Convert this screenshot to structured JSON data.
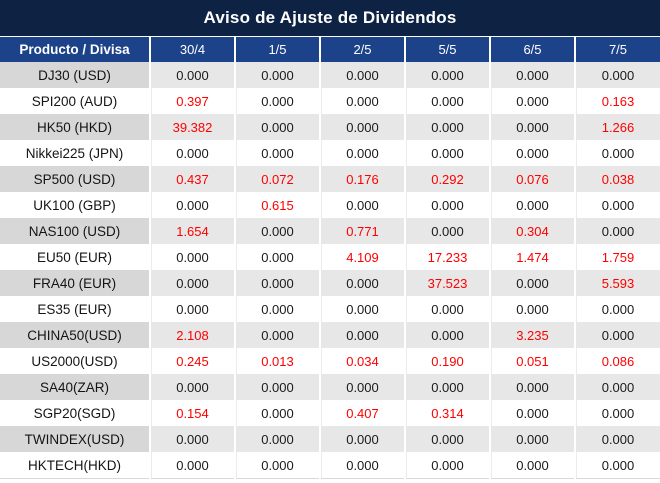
{
  "title": "Aviso de Ajuste de Dividendos",
  "colors": {
    "title_bg": "#0e2343",
    "header_bg": "#1c4289",
    "stripe_label_bg": "#d7d7d7",
    "stripe_cell_bg": "#e7e7e7",
    "negative_value_red": "#ff0000",
    "value_text": "#1a1a1a"
  },
  "table": {
    "corner_header": "Producto / Divisa",
    "date_headers": [
      "30/4",
      "1/5",
      "2/5",
      "5/5",
      "6/5",
      "7/5"
    ],
    "rows": [
      {
        "product": "DJ30 (USD)",
        "values": [
          "0.000",
          "0.000",
          "0.000",
          "0.000",
          "0.000",
          "0.000"
        ],
        "red_mask": [
          0,
          0,
          0,
          0,
          0,
          0
        ]
      },
      {
        "product": "SPI200 (AUD)",
        "values": [
          "0.397",
          "0.000",
          "0.000",
          "0.000",
          "0.000",
          "0.163"
        ],
        "red_mask": [
          1,
          0,
          0,
          0,
          0,
          1
        ]
      },
      {
        "product": "HK50 (HKD)",
        "values": [
          "39.382",
          "0.000",
          "0.000",
          "0.000",
          "0.000",
          "1.266"
        ],
        "red_mask": [
          1,
          0,
          0,
          0,
          0,
          1
        ]
      },
      {
        "product": "Nikkei225 (JPN)",
        "values": [
          "0.000",
          "0.000",
          "0.000",
          "0.000",
          "0.000",
          "0.000"
        ],
        "red_mask": [
          0,
          0,
          0,
          0,
          0,
          0
        ]
      },
      {
        "product": "SP500 (USD)",
        "values": [
          "0.437",
          "0.072",
          "0.176",
          "0.292",
          "0.076",
          "0.038"
        ],
        "red_mask": [
          1,
          1,
          1,
          1,
          1,
          1
        ]
      },
      {
        "product": "UK100 (GBP)",
        "values": [
          "0.000",
          "0.615",
          "0.000",
          "0.000",
          "0.000",
          "0.000"
        ],
        "red_mask": [
          0,
          1,
          0,
          0,
          0,
          0
        ]
      },
      {
        "product": "NAS100 (USD)",
        "values": [
          "1.654",
          "0.000",
          "0.771",
          "0.000",
          "0.304",
          "0.000"
        ],
        "red_mask": [
          1,
          0,
          1,
          0,
          1,
          0
        ]
      },
      {
        "product": "EU50 (EUR)",
        "values": [
          "0.000",
          "0.000",
          "4.109",
          "17.233",
          "1.474",
          "1.759"
        ],
        "red_mask": [
          0,
          0,
          1,
          1,
          1,
          1
        ]
      },
      {
        "product": "FRA40 (EUR)",
        "values": [
          "0.000",
          "0.000",
          "0.000",
          "37.523",
          "0.000",
          "5.593"
        ],
        "red_mask": [
          0,
          0,
          0,
          1,
          0,
          1
        ]
      },
      {
        "product": "ES35 (EUR)",
        "values": [
          "0.000",
          "0.000",
          "0.000",
          "0.000",
          "0.000",
          "0.000"
        ],
        "red_mask": [
          0,
          0,
          0,
          0,
          0,
          0
        ]
      },
      {
        "product": "CHINA50(USD)",
        "values": [
          "2.108",
          "0.000",
          "0.000",
          "0.000",
          "3.235",
          "0.000"
        ],
        "red_mask": [
          1,
          0,
          0,
          0,
          1,
          0
        ]
      },
      {
        "product": "US2000(USD)",
        "values": [
          "0.245",
          "0.013",
          "0.034",
          "0.190",
          "0.051",
          "0.086"
        ],
        "red_mask": [
          1,
          1,
          1,
          1,
          1,
          1
        ]
      },
      {
        "product": "SA40(ZAR)",
        "values": [
          "0.000",
          "0.000",
          "0.000",
          "0.000",
          "0.000",
          "0.000"
        ],
        "red_mask": [
          0,
          0,
          0,
          0,
          0,
          0
        ]
      },
      {
        "product": "SGP20(SGD)",
        "values": [
          "0.154",
          "0.000",
          "0.407",
          "0.314",
          "0.000",
          "0.000"
        ],
        "red_mask": [
          1,
          0,
          1,
          1,
          0,
          0
        ]
      },
      {
        "product": "TWINDEX(USD)",
        "values": [
          "0.000",
          "0.000",
          "0.000",
          "0.000",
          "0.000",
          "0.000"
        ],
        "red_mask": [
          0,
          0,
          0,
          0,
          0,
          0
        ]
      },
      {
        "product": "HKTECH(HKD)",
        "values": [
          "0.000",
          "0.000",
          "0.000",
          "0.000",
          "0.000",
          "0.000"
        ],
        "red_mask": [
          0,
          0,
          0,
          0,
          0,
          0
        ]
      }
    ]
  }
}
